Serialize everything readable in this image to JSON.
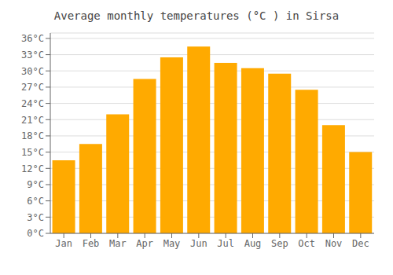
{
  "chart_data": {
    "type": "bar",
    "title": "Average monthly temperatures (°C ) in Sirsa",
    "categories": [
      "Jan",
      "Feb",
      "Mar",
      "Apr",
      "May",
      "Jun",
      "Jul",
      "Aug",
      "Sep",
      "Oct",
      "Nov",
      "Dec"
    ],
    "values": [
      13.5,
      16.5,
      22,
      28.5,
      32.5,
      34.5,
      31.5,
      30.5,
      29.5,
      26.5,
      20,
      15
    ],
    "color": "#FFAA00",
    "ylim": [
      0,
      37
    ],
    "yticks": [
      {
        "value": 0,
        "label": "0°C"
      },
      {
        "value": 3,
        "label": "3°C"
      },
      {
        "value": 6,
        "label": "6°C"
      },
      {
        "value": 9,
        "label": "9°C"
      },
      {
        "value": 12,
        "label": "12°C"
      },
      {
        "value": 15,
        "label": "15°C"
      },
      {
        "value": 18,
        "label": "18°C"
      },
      {
        "value": 21,
        "label": "21°C"
      },
      {
        "value": 24,
        "label": "24°C"
      },
      {
        "value": 27,
        "label": "27°C"
      },
      {
        "value": 30,
        "label": "30°C"
      },
      {
        "value": 33,
        "label": "33°C"
      },
      {
        "value": 36,
        "label": "36°C"
      }
    ],
    "grid": true
  }
}
